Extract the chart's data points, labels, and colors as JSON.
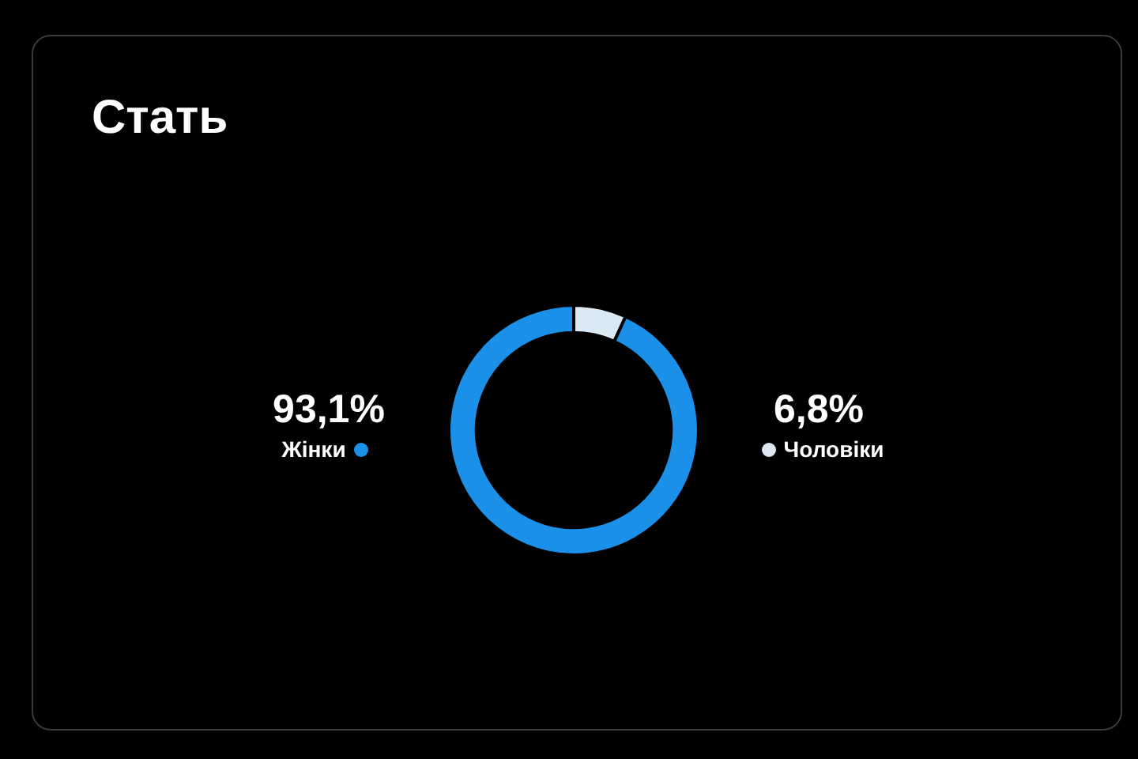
{
  "chart_data": {
    "type": "donut",
    "title": "Стать",
    "categories": [
      "Жінки",
      "Чоловіки"
    ],
    "values": [
      93.1,
      6.8
    ],
    "value_labels": [
      "93,1%",
      "6,8%"
    ],
    "colors": [
      "#1a90e8",
      "#dbe9f5"
    ],
    "legend": "right"
  }
}
